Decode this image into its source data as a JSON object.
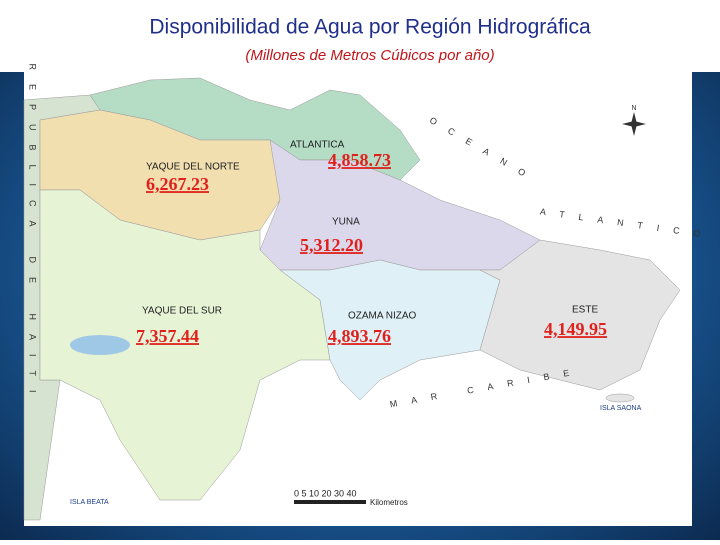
{
  "header": {
    "title": "Disponibilidad de Agua por Región Hidrográfica",
    "subtitle": "(Millones de Metros Cúbicos por año)"
  },
  "regions": [
    {
      "name": "ATLANTICA",
      "value": "4,858.73"
    },
    {
      "name": "YAQUE DEL NORTE",
      "value": "6,267.23"
    },
    {
      "name": "YUNA",
      "value": "5,312.20"
    },
    {
      "name": "YAQUE DEL SUR",
      "value": "7,357.44"
    },
    {
      "name": "OZAMA NIZAO",
      "value": "4,893.76"
    },
    {
      "name": "ESTE",
      "value": "4,149.95"
    }
  ],
  "map": {
    "country": "REPUBLICA DE HAITI",
    "ocean_top": "OCEANO",
    "ocean_bottom": "ATLANTICO",
    "sea": "MAR CARIBE",
    "island_east": "ISLA SAONA",
    "island_south": "ISLA BEATA",
    "scale": "0 5 10 20 30 40",
    "scale_unit": "Kilometros",
    "north": "N"
  }
}
